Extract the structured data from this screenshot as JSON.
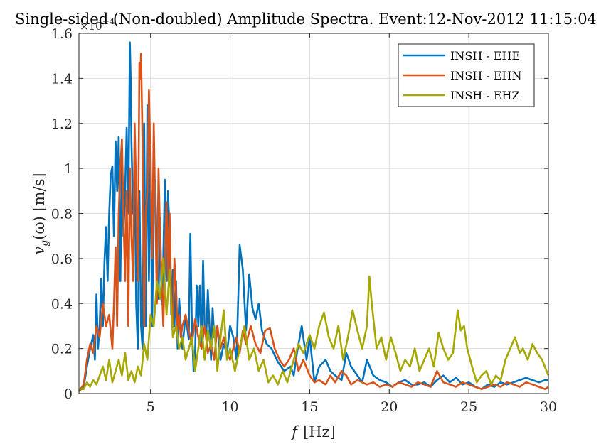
{
  "chart_data": {
    "type": "line",
    "title": "Single-sided (Non-doubled) Amplitude Spectra. Event:12-Nov-2012 11:15:04",
    "xlabel_var": "f",
    "xlabel_unit": "[Hz]",
    "ylabel_var": "v",
    "ylabel_sub": "g",
    "ylabel_rest": "(ω)  [m/s]",
    "y_exponent_base": "×10",
    "y_exponent": "−4",
    "xlim": [
      0.5,
      30
    ],
    "ylim": [
      0,
      1.6
    ],
    "x_ticks": [
      5,
      10,
      15,
      20,
      25,
      30
    ],
    "x_tick_labels": [
      "5",
      "10",
      "15",
      "20",
      "25",
      "30"
    ],
    "y_ticks": [
      0,
      0.2,
      0.4,
      0.6,
      0.8,
      1,
      1.2,
      1.4,
      1.6
    ],
    "y_tick_labels": [
      "0",
      "0.2",
      "0.4",
      "0.6",
      "0.8",
      "1",
      "1.2",
      "1.4",
      "1.6"
    ],
    "grid": true,
    "legend_position": "top-right",
    "series": [
      {
        "name": "INSH - EHE",
        "color": "#0072BD",
        "x": [
          0.5,
          0.8,
          1.0,
          1.2,
          1.4,
          1.5,
          1.6,
          1.7,
          1.8,
          1.9,
          2.0,
          2.1,
          2.2,
          2.3,
          2.4,
          2.5,
          2.6,
          2.7,
          2.8,
          2.9,
          3.0,
          3.1,
          3.2,
          3.3,
          3.4,
          3.5,
          3.6,
          3.7,
          3.75,
          3.8,
          3.9,
          4.0,
          4.1,
          4.2,
          4.3,
          4.4,
          4.5,
          4.6,
          4.7,
          4.8,
          4.9,
          5.0,
          5.1,
          5.2,
          5.3,
          5.4,
          5.5,
          5.6,
          5.7,
          5.8,
          5.9,
          6.0,
          6.1,
          6.2,
          6.3,
          6.4,
          6.5,
          6.6,
          6.7,
          6.8,
          6.9,
          7.0,
          7.2,
          7.4,
          7.5,
          7.6,
          7.7,
          7.8,
          7.9,
          8.0,
          8.1,
          8.2,
          8.3,
          8.4,
          8.5,
          8.6,
          8.7,
          8.8,
          8.9,
          9.0,
          9.2,
          9.4,
          9.6,
          9.8,
          10.0,
          10.2,
          10.4,
          10.6,
          10.8,
          11.0,
          11.2,
          11.4,
          11.6,
          11.8,
          12.0,
          12.3,
          12.6,
          13.0,
          13.4,
          13.8,
          14.0,
          14.2,
          14.5,
          14.8,
          15.0,
          15.3,
          15.6,
          16.0,
          16.3,
          16.6,
          17.0,
          17.3,
          17.6,
          18.0,
          18.3,
          18.6,
          19.0,
          19.4,
          19.8,
          20.2,
          20.6,
          21.0,
          21.4,
          21.8,
          22.2,
          22.6,
          23.0,
          23.4,
          23.8,
          24.2,
          24.6,
          25.0,
          25.4,
          25.8,
          26.2,
          26.6,
          27.0,
          27.4,
          27.8,
          28.2,
          28.6,
          29.0,
          29.4,
          29.8,
          30.0
        ],
        "y": [
          0.01,
          0.03,
          0.12,
          0.2,
          0.26,
          0.15,
          0.44,
          0.2,
          0.3,
          0.51,
          0.3,
          0.58,
          0.74,
          0.5,
          0.8,
          0.97,
          1.01,
          0.7,
          1.12,
          0.9,
          1.14,
          0.5,
          1.05,
          0.7,
          0.9,
          1.18,
          0.8,
          1.56,
          1.4,
          1.12,
          0.8,
          1.0,
          0.4,
          0.2,
          0.9,
          0.3,
          0.2,
          1.2,
          0.3,
          1.28,
          0.5,
          1.1,
          0.3,
          0.85,
          0.95,
          0.55,
          0.42,
          0.78,
          0.4,
          0.6,
          0.95,
          0.5,
          0.9,
          0.7,
          0.35,
          0.55,
          0.3,
          0.5,
          0.2,
          0.42,
          0.3,
          0.2,
          0.35,
          0.24,
          0.71,
          0.3,
          0.1,
          0.18,
          0.48,
          0.3,
          0.48,
          0.2,
          0.59,
          0.3,
          0.26,
          0.46,
          0.3,
          0.15,
          0.38,
          0.25,
          0.3,
          0.15,
          0.22,
          0.18,
          0.3,
          0.25,
          0.15,
          0.66,
          0.55,
          0.28,
          0.53,
          0.38,
          0.33,
          0.4,
          0.28,
          0.22,
          0.2,
          0.14,
          0.1,
          0.12,
          0.08,
          0.18,
          0.3,
          0.15,
          0.25,
          0.05,
          0.12,
          0.15,
          0.1,
          0.08,
          0.06,
          0.18,
          0.12,
          0.08,
          0.05,
          0.15,
          0.08,
          0.06,
          0.05,
          0.03,
          0.05,
          0.06,
          0.04,
          0.04,
          0.05,
          0.03,
          0.06,
          0.08,
          0.05,
          0.07,
          0.04,
          0.05,
          0.03,
          0.02,
          0.04,
          0.03,
          0.05,
          0.04,
          0.05,
          0.06,
          0.07,
          0.06,
          0.05,
          0.06,
          0.06
        ]
      },
      {
        "name": "INSH - EHN",
        "color": "#D95319",
        "x": [
          0.5,
          0.8,
          1.0,
          1.2,
          1.4,
          1.6,
          1.8,
          2.0,
          2.2,
          2.4,
          2.6,
          2.7,
          2.8,
          2.9,
          3.0,
          3.1,
          3.2,
          3.3,
          3.4,
          3.5,
          3.6,
          3.7,
          3.8,
          3.9,
          4.0,
          4.1,
          4.2,
          4.3,
          4.35,
          4.4,
          4.5,
          4.6,
          4.7,
          4.8,
          4.9,
          5.0,
          5.1,
          5.2,
          5.3,
          5.4,
          5.5,
          5.6,
          5.7,
          5.8,
          5.9,
          6.0,
          6.1,
          6.2,
          6.3,
          6.4,
          6.5,
          6.6,
          6.7,
          6.8,
          6.9,
          7.0,
          7.2,
          7.4,
          7.6,
          7.8,
          8.0,
          8.2,
          8.4,
          8.6,
          8.8,
          9.0,
          9.2,
          9.4,
          9.6,
          9.8,
          10.0,
          10.2,
          10.4,
          10.6,
          10.8,
          11.0,
          11.3,
          11.6,
          11.9,
          12.2,
          12.5,
          12.8,
          13.1,
          13.4,
          13.7,
          14.0,
          14.3,
          14.6,
          15.0,
          15.3,
          15.6,
          16.0,
          16.3,
          16.6,
          17.0,
          17.3,
          17.6,
          18.0,
          18.3,
          18.6,
          19.0,
          19.4,
          19.8,
          20.2,
          20.6,
          21.0,
          21.4,
          21.8,
          22.2,
          22.6,
          23.0,
          23.4,
          23.8,
          24.2,
          24.6,
          25.0,
          25.4,
          25.8,
          26.2,
          26.6,
          27.0,
          27.4,
          27.8,
          28.2,
          28.6,
          29.0,
          29.4,
          29.8,
          30.0
        ],
        "y": [
          0.01,
          0.04,
          0.15,
          0.22,
          0.18,
          0.3,
          0.25,
          0.4,
          0.3,
          0.35,
          0.2,
          0.4,
          0.65,
          0.3,
          0.8,
          1.0,
          1.13,
          0.8,
          0.5,
          0.9,
          0.3,
          1.0,
          0.7,
          0.5,
          1.2,
          0.9,
          0.5,
          1.47,
          1.4,
          1.51,
          1.1,
          0.3,
          0.8,
          0.9,
          1.35,
          1.0,
          0.6,
          1.2,
          0.8,
          0.4,
          1.0,
          0.7,
          0.5,
          0.3,
          0.6,
          0.85,
          0.5,
          0.8,
          0.4,
          0.3,
          0.6,
          0.45,
          0.28,
          0.35,
          0.25,
          0.3,
          0.35,
          0.28,
          0.22,
          0.33,
          0.25,
          0.2,
          0.3,
          0.18,
          0.22,
          0.15,
          0.3,
          0.2,
          0.25,
          0.18,
          0.15,
          0.2,
          0.25,
          0.18,
          0.28,
          0.22,
          0.3,
          0.22,
          0.18,
          0.28,
          0.29,
          0.2,
          0.15,
          0.12,
          0.15,
          0.2,
          0.1,
          0.15,
          0.08,
          0.05,
          0.06,
          0.04,
          0.08,
          0.05,
          0.1,
          0.08,
          0.04,
          0.06,
          0.05,
          0.04,
          0.05,
          0.03,
          0.04,
          0.03,
          0.05,
          0.04,
          0.03,
          0.05,
          0.04,
          0.03,
          0.1,
          0.05,
          0.04,
          0.03,
          0.05,
          0.04,
          0.03,
          0.02,
          0.03,
          0.04,
          0.03,
          0.05,
          0.04,
          0.03,
          0.05,
          0.04,
          0.03,
          0.02,
          0.03
        ]
      },
      {
        "name": "INSH - EHZ",
        "color": "#A5A800",
        "x": [
          0.5,
          0.8,
          1.0,
          1.2,
          1.4,
          1.6,
          1.8,
          2.0,
          2.2,
          2.4,
          2.6,
          2.8,
          3.0,
          3.2,
          3.4,
          3.6,
          3.8,
          4.0,
          4.2,
          4.4,
          4.6,
          4.8,
          5.0,
          5.2,
          5.4,
          5.6,
          5.8,
          6.0,
          6.2,
          6.4,
          6.6,
          6.8,
          7.0,
          7.2,
          7.4,
          7.6,
          7.8,
          8.0,
          8.2,
          8.4,
          8.6,
          8.8,
          9.0,
          9.2,
          9.4,
          9.6,
          9.8,
          10.0,
          10.3,
          10.6,
          10.9,
          11.2,
          11.5,
          11.8,
          12.1,
          12.4,
          12.7,
          13.0,
          13.3,
          13.6,
          14.0,
          14.3,
          14.6,
          15.0,
          15.3,
          15.6,
          15.9,
          16.2,
          16.5,
          16.8,
          17.1,
          17.4,
          17.7,
          18.0,
          18.3,
          18.6,
          18.75,
          18.9,
          19.2,
          19.5,
          19.8,
          20.1,
          20.4,
          20.7,
          21.0,
          21.3,
          21.6,
          21.9,
          22.2,
          22.5,
          22.8,
          23.1,
          23.4,
          23.7,
          24.0,
          24.3,
          24.5,
          24.7,
          24.9,
          25.2,
          25.5,
          25.8,
          26.1,
          26.4,
          26.7,
          27.0,
          27.3,
          27.6,
          27.9,
          28.2,
          28.4,
          28.7,
          29.0,
          29.3,
          29.6,
          30.0
        ],
        "y": [
          0.02,
          0.02,
          0.05,
          0.03,
          0.06,
          0.04,
          0.08,
          0.12,
          0.06,
          0.15,
          0.05,
          0.1,
          0.15,
          0.08,
          0.18,
          0.06,
          0.1,
          0.05,
          0.12,
          0.08,
          0.22,
          0.15,
          0.35,
          0.3,
          0.5,
          0.42,
          0.6,
          0.35,
          0.55,
          0.25,
          0.3,
          0.2,
          0.25,
          0.15,
          0.2,
          0.25,
          0.1,
          0.2,
          0.3,
          0.15,
          0.28,
          0.2,
          0.3,
          0.1,
          0.25,
          0.37,
          0.15,
          0.2,
          0.1,
          0.2,
          0.3,
          0.15,
          0.2,
          0.1,
          0.15,
          0.05,
          0.08,
          0.04,
          0.1,
          0.05,
          0.15,
          0.22,
          0.18,
          0.26,
          0.2,
          0.3,
          0.36,
          0.25,
          0.2,
          0.3,
          0.15,
          0.25,
          0.37,
          0.28,
          0.2,
          0.3,
          0.52,
          0.4,
          0.2,
          0.25,
          0.15,
          0.25,
          0.18,
          0.1,
          0.15,
          0.12,
          0.2,
          0.1,
          0.15,
          0.2,
          0.12,
          0.27,
          0.2,
          0.15,
          0.18,
          0.37,
          0.28,
          0.3,
          0.2,
          0.12,
          0.05,
          0.08,
          0.1,
          0.04,
          0.08,
          0.06,
          0.15,
          0.2,
          0.25,
          0.18,
          0.2,
          0.15,
          0.22,
          0.18,
          0.15,
          0.08
        ]
      }
    ]
  }
}
